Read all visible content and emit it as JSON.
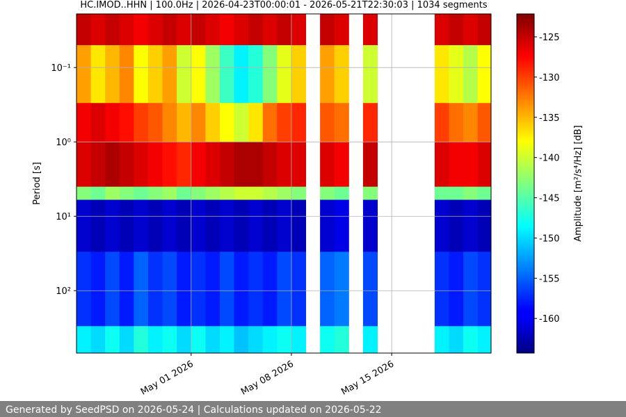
{
  "chart_data": {
    "type": "heatmap",
    "title": "HC.IMOD..HHN | 100.0Hz | 2026-04-23T00:00:01 - 2026-05-21T22:30:03 | 1034 segments",
    "ylabel": "Period [s]",
    "colorbar_label": "Amplitude [m²/s⁴/Hz] [dB]",
    "footer": "Generated by SeedPSD on 2026-05-24 | Calculations updated on 2026-05-22",
    "xlim": [
      "2026-04-23T00:00:01",
      "2026-05-21T22:30:03"
    ],
    "xticks": [
      {
        "value": "2026-05-01",
        "label": "May 01 2026"
      },
      {
        "value": "2026-05-08",
        "label": "May 08 2026"
      },
      {
        "value": "2026-05-15",
        "label": "May 15 2026"
      }
    ],
    "ylim": [
      0.019,
      690
    ],
    "ylog": true,
    "yinverted": true,
    "yticks": [
      {
        "value": 0.1,
        "label": "10⁻¹"
      },
      {
        "value": 1,
        "label": "10⁰"
      },
      {
        "value": 10,
        "label": "10¹"
      },
      {
        "value": 100,
        "label": "10²"
      }
    ],
    "grid": true,
    "colormap": "jet",
    "clim": [
      -164.3,
      -122.15
    ],
    "cticks": [
      -125,
      -130,
      -135,
      -140,
      -145,
      -150,
      -155,
      -160
    ],
    "x": [
      "2026-04-23",
      "2026-04-24",
      "2026-04-25",
      "2026-04-26",
      "2026-04-27",
      "2026-04-28",
      "2026-04-29",
      "2026-04-30",
      "2026-05-01",
      "2026-05-02",
      "2026-05-03",
      "2026-05-04",
      "2026-05-05",
      "2026-05-06",
      "2026-05-07",
      "2026-05-08",
      "2026-05-09",
      "2026-05-10",
      "2026-05-11",
      "2026-05-12",
      "2026-05-13",
      "2026-05-14",
      "2026-05-15",
      "2026-05-16",
      "2026-05-17",
      "2026-05-18",
      "2026-05-19",
      "2026-05-20",
      "2026-05-21"
    ],
    "period_bins": [
      0.019,
      0.05,
      0.3,
      1,
      4,
      6,
      30,
      300,
      690
    ],
    "values": [
      [
        -125,
        -134,
        -127,
        -126,
        -143,
        -161,
        -157,
        -149
      ],
      [
        -126,
        -137,
        -126,
        -125,
        -144,
        -162,
        -158,
        -150
      ],
      [
        -125,
        -135,
        -127,
        -124,
        -142,
        -161,
        -156,
        -148
      ],
      [
        -126,
        -133,
        -128,
        -125,
        -143,
        -162,
        -158,
        -150
      ],
      [
        -127,
        -138,
        -130,
        -126,
        -144,
        -161,
        -155,
        -147
      ],
      [
        -126,
        -136,
        -131,
        -127,
        -143,
        -162,
        -157,
        -149
      ],
      [
        -125,
        -134,
        -133,
        -128,
        -142,
        -161,
        -156,
        -148
      ],
      [
        -126,
        -140,
        -135,
        -129,
        -144,
        -162,
        -158,
        -150
      ],
      [
        -125,
        -138,
        -133,
        -127,
        -143,
        -161,
        -157,
        -148
      ],
      [
        -126,
        -142,
        -136,
        -126,
        -142,
        -162,
        -158,
        -150
      ],
      [
        -127,
        -146,
        -138,
        -125,
        -141,
        -161,
        -156,
        -149
      ],
      [
        -126,
        -149,
        -140,
        -124,
        -140,
        -162,
        -158,
        -151
      ],
      [
        -125,
        -147,
        -137,
        -124,
        -140,
        -161,
        -157,
        -150
      ],
      [
        -126,
        -143,
        -132,
        -125,
        -141,
        -162,
        -158,
        -149
      ],
      [
        -125,
        -139,
        -130,
        -126,
        -142,
        -161,
        -156,
        -148
      ],
      [
        -126,
        -136,
        -129,
        -126,
        -143,
        -162,
        -157,
        -149
      ],
      [
        null,
        null,
        null,
        null,
        null,
        null,
        null,
        null
      ],
      [
        -125,
        -134,
        -131,
        -126,
        -143,
        -161,
        -155,
        -148
      ],
      [
        -126,
        -136,
        -132,
        -127,
        -144,
        -160,
        -154,
        -147
      ],
      [
        null,
        null,
        null,
        null,
        null,
        null,
        null,
        null
      ],
      [
        -126,
        -140,
        -129,
        -125,
        -143,
        -161,
        -156,
        -149
      ],
      [
        null,
        null,
        null,
        null,
        null,
        null,
        null,
        null
      ],
      [
        null,
        null,
        null,
        null,
        null,
        null,
        null,
        null
      ],
      [
        null,
        null,
        null,
        null,
        null,
        null,
        null,
        null
      ],
      [
        null,
        null,
        null,
        null,
        null,
        null,
        null,
        null
      ],
      [
        -126,
        -137,
        -130,
        -126,
        -144,
        -161,
        -157,
        -149
      ],
      [
        -125,
        -139,
        -132,
        -127,
        -144,
        -162,
        -158,
        -150
      ],
      [
        -126,
        -141,
        -133,
        -127,
        -143,
        -161,
        -156,
        -148
      ],
      [
        -125,
        -138,
        -131,
        -126,
        -144,
        -162,
        -157,
        -149
      ]
    ]
  }
}
